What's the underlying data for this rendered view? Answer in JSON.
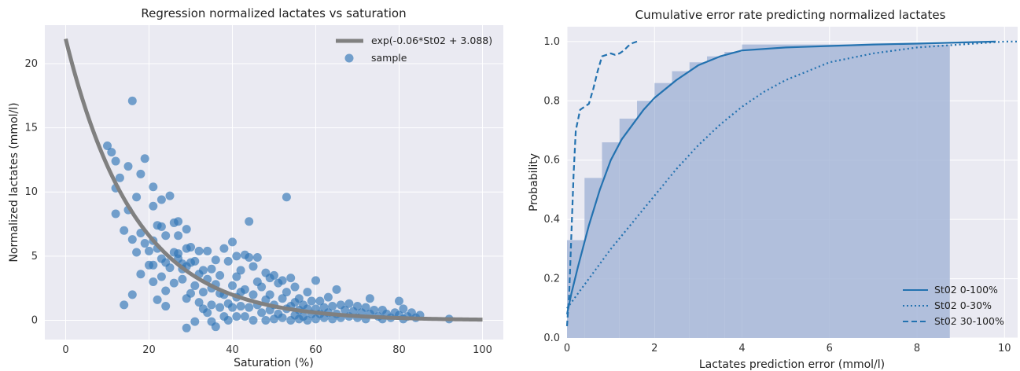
{
  "chart_data": [
    {
      "type": "scatter",
      "title": "Regression normalized lactates vs saturation",
      "xlabel": "Saturation (%)",
      "ylabel": "Normalized lactates (mmol/l)",
      "xlim": [
        -5,
        105
      ],
      "ylim": [
        -1.5,
        23
      ],
      "xticks": [
        0,
        20,
        40,
        60,
        80,
        100
      ],
      "yticks": [
        0,
        5,
        10,
        15,
        20
      ],
      "grid": true,
      "legend_position": "top-right",
      "colors": {
        "fit": "#808080",
        "sample": "#2f75b5",
        "background": "#eaeaf2"
      },
      "series": [
        {
          "name": "exp(-0.06*St02 + 3.088)",
          "kind": "curve",
          "formula": {
            "a": -0.06,
            "b": 3.088,
            "x_range": [
              0,
              100
            ]
          }
        },
        {
          "name": "sample",
          "kind": "points",
          "points": [
            [
              10,
              13.6
            ],
            [
              11,
              13.1
            ],
            [
              12,
              12.4
            ],
            [
              12,
              10.3
            ],
            [
              12,
              8.3
            ],
            [
              13,
              11.1
            ],
            [
              14,
              7.0
            ],
            [
              14,
              1.2
            ],
            [
              15,
              12.0
            ],
            [
              15,
              8.6
            ],
            [
              16,
              17.1
            ],
            [
              16,
              6.3
            ],
            [
              16,
              2.0
            ],
            [
              17,
              9.6
            ],
            [
              17,
              5.3
            ],
            [
              18,
              11.4
            ],
            [
              18,
              6.8
            ],
            [
              18,
              3.6
            ],
            [
              19,
              12.6
            ],
            [
              19,
              6.0
            ],
            [
              20,
              5.4
            ],
            [
              20,
              4.3
            ],
            [
              21,
              10.4
            ],
            [
              21,
              8.9
            ],
            [
              21,
              6.2
            ],
            [
              21,
              4.3
            ],
            [
              21,
              3.0
            ],
            [
              22,
              7.4
            ],
            [
              22,
              5.6
            ],
            [
              22,
              1.6
            ],
            [
              23,
              9.4
            ],
            [
              23,
              7.3
            ],
            [
              23,
              4.8
            ],
            [
              23,
              3.4
            ],
            [
              24,
              6.6
            ],
            [
              24,
              4.5
            ],
            [
              24,
              2.3
            ],
            [
              24,
              1.1
            ],
            [
              25,
              9.7
            ],
            [
              25,
              4.1
            ],
            [
              26,
              7.6
            ],
            [
              26,
              5.3
            ],
            [
              26,
              2.9
            ],
            [
              27,
              7.7
            ],
            [
              27,
              6.6
            ],
            [
              27,
              5.2
            ],
            [
              27,
              4.8
            ],
            [
              28,
              4.4
            ],
            [
              28,
              4.0
            ],
            [
              28,
              3.2
            ],
            [
              29,
              7.1
            ],
            [
              29,
              5.6
            ],
            [
              29,
              4.2
            ],
            [
              29,
              1.7
            ],
            [
              29,
              -0.6
            ],
            [
              30,
              5.7
            ],
            [
              30,
              4.5
            ],
            [
              30,
              2.1
            ],
            [
              31,
              4.6
            ],
            [
              31,
              2.7
            ],
            [
              31,
              -0.1
            ],
            [
              32,
              5.4
            ],
            [
              32,
              3.6
            ],
            [
              32,
              1.4
            ],
            [
              33,
              3.9
            ],
            [
              33,
              2.2
            ],
            [
              33,
              0.9
            ],
            [
              34,
              5.4
            ],
            [
              34,
              3.2
            ],
            [
              34,
              0.6
            ],
            [
              35,
              4.0
            ],
            [
              35,
              2.5
            ],
            [
              35,
              1.2
            ],
            [
              35,
              -0.1
            ],
            [
              36,
              4.7
            ],
            [
              36,
              2.8
            ],
            [
              36,
              -0.5
            ],
            [
              37,
              2.1
            ],
            [
              37,
              1.0
            ],
            [
              37,
              3.5
            ],
            [
              38,
              5.6
            ],
            [
              38,
              0.3
            ],
            [
              38,
              2.0
            ],
            [
              39,
              4.6
            ],
            [
              39,
              1.3
            ],
            [
              39,
              0.0
            ],
            [
              40,
              6.1
            ],
            [
              40,
              2.7
            ],
            [
              40,
              1.0
            ],
            [
              41,
              5.0
            ],
            [
              41,
              3.4
            ],
            [
              41,
              1.8
            ],
            [
              41,
              0.3
            ],
            [
              42,
              2.2
            ],
            [
              42,
              1.1
            ],
            [
              42,
              3.9
            ],
            [
              43,
              5.1
            ],
            [
              43,
              2.4
            ],
            [
              43,
              0.3
            ],
            [
              44,
              4.9
            ],
            [
              44,
              1.0
            ],
            [
              44,
              7.7
            ],
            [
              45,
              4.2
            ],
            [
              45,
              2.0
            ],
            [
              45,
              0.0
            ],
            [
              46,
              4.9
            ],
            [
              46,
              3.0
            ],
            [
              46,
              1.2
            ],
            [
              47,
              2.6
            ],
            [
              47,
              0.6
            ],
            [
              48,
              3.7
            ],
            [
              48,
              1.6
            ],
            [
              48,
              0.0
            ],
            [
              49,
              2.0
            ],
            [
              49,
              3.3
            ],
            [
              49,
              0.8
            ],
            [
              50,
              3.5
            ],
            [
              50,
              1.2
            ],
            [
              50,
              0.1
            ],
            [
              51,
              2.9
            ],
            [
              51,
              0.5
            ],
            [
              52,
              3.1
            ],
            [
              52,
              1.7
            ],
            [
              52,
              0.2
            ],
            [
              53,
              9.6
            ],
            [
              53,
              2.2
            ],
            [
              53,
              0.9
            ],
            [
              54,
              3.3
            ],
            [
              54,
              1.1
            ],
            [
              54,
              0.0
            ],
            [
              55,
              2.6
            ],
            [
              55,
              1.4
            ],
            [
              55,
              0.4
            ],
            [
              56,
              1.7
            ],
            [
              56,
              0.8
            ],
            [
              56,
              0.1
            ],
            [
              57,
              1.2
            ],
            [
              57,
              0.3
            ],
            [
              58,
              2.2
            ],
            [
              58,
              0.9
            ],
            [
              58,
              0.0
            ],
            [
              59,
              1.5
            ],
            [
              59,
              0.5
            ],
            [
              60,
              3.1
            ],
            [
              60,
              0.9
            ],
            [
              60,
              0.1
            ],
            [
              61,
              1.5
            ],
            [
              61,
              0.5
            ],
            [
              62,
              1.0
            ],
            [
              62,
              0.2
            ],
            [
              63,
              1.8
            ],
            [
              63,
              0.6
            ],
            [
              64,
              1.1
            ],
            [
              64,
              0.1
            ],
            [
              65,
              2.4
            ],
            [
              65,
              0.5
            ],
            [
              66,
              1.2
            ],
            [
              66,
              0.2
            ],
            [
              67,
              0.8
            ],
            [
              68,
              1.3
            ],
            [
              68,
              0.3
            ],
            [
              69,
              0.7
            ],
            [
              70,
              1.1
            ],
            [
              70,
              0.2
            ],
            [
              71,
              0.6
            ],
            [
              72,
              1.0
            ],
            [
              72,
              0.1
            ],
            [
              73,
              1.7
            ],
            [
              73,
              0.5
            ],
            [
              74,
              0.8
            ],
            [
              75,
              0.3
            ],
            [
              76,
              0.8
            ],
            [
              76,
              0.1
            ],
            [
              77,
              0.5
            ],
            [
              78,
              0.2
            ],
            [
              79,
              0.6
            ],
            [
              80,
              1.5
            ],
            [
              80,
              0.4
            ],
            [
              81,
              0.9
            ],
            [
              81,
              0.1
            ],
            [
              82,
              0.3
            ],
            [
              83,
              0.6
            ],
            [
              84,
              0.2
            ],
            [
              85,
              0.4
            ],
            [
              92,
              0.1
            ]
          ]
        }
      ]
    },
    {
      "type": "line",
      "title": "Cumulative error rate predicting normalized lactates",
      "xlabel": "Lactates prediction error (mmol/l)",
      "ylabel": "Probability",
      "xlim": [
        0,
        10.3
      ],
      "ylim": [
        0,
        1.05
      ],
      "xticks": [
        0,
        2,
        4,
        6,
        8,
        10
      ],
      "yticks": [
        0.0,
        0.2,
        0.4,
        0.6,
        0.8,
        1.0
      ],
      "grid": true,
      "legend_position": "bottom-right",
      "colors": {
        "line": "#2372b0",
        "hist": "#a7b7d8",
        "background": "#eaeaf2"
      },
      "histogram": {
        "bin_edges": [
          0,
          0.4,
          0.8,
          1.2,
          1.6,
          2.0,
          2.4,
          2.8,
          3.2,
          3.6,
          4.0,
          8.75
        ],
        "values": [
          0.33,
          0.54,
          0.66,
          0.74,
          0.8,
          0.86,
          0.9,
          0.93,
          0.95,
          0.965,
          0.99
        ]
      },
      "series": [
        {
          "name": "St02 0-100%",
          "style": "solid",
          "x": [
            0,
            0.1,
            0.25,
            0.5,
            0.75,
            1.0,
            1.25,
            1.5,
            1.75,
            2.0,
            2.5,
            3.0,
            3.5,
            4.0,
            5.0,
            6.0,
            7.0,
            8.0,
            9.0,
            9.8
          ],
          "y": [
            0.08,
            0.15,
            0.24,
            0.38,
            0.5,
            0.6,
            0.67,
            0.72,
            0.77,
            0.81,
            0.87,
            0.92,
            0.95,
            0.97,
            0.98,
            0.985,
            0.99,
            0.993,
            0.997,
            1.0
          ]
        },
        {
          "name": "St02 0-30%",
          "style": "dotted",
          "x": [
            0,
            0.2,
            0.5,
            1.0,
            1.5,
            2.0,
            2.5,
            3.0,
            3.5,
            4.0,
            4.5,
            5.0,
            6.0,
            7.0,
            8.0,
            9.0,
            10.0,
            10.3
          ],
          "y": [
            0.1,
            0.14,
            0.2,
            0.3,
            0.39,
            0.48,
            0.57,
            0.65,
            0.72,
            0.78,
            0.83,
            0.87,
            0.93,
            0.96,
            0.98,
            0.99,
            1.0,
            1.0
          ]
        },
        {
          "name": "St02 30-100%",
          "style": "dashed",
          "x": [
            0,
            0.05,
            0.1,
            0.15,
            0.2,
            0.3,
            0.4,
            0.5,
            0.6,
            0.7,
            0.8,
            0.9,
            1.0,
            1.1,
            1.2,
            1.3,
            1.4,
            1.5,
            1.6
          ],
          "y": [
            0.04,
            0.15,
            0.35,
            0.55,
            0.7,
            0.77,
            0.78,
            0.79,
            0.84,
            0.9,
            0.95,
            0.955,
            0.96,
            0.955,
            0.96,
            0.97,
            0.985,
            0.995,
            1.0
          ]
        }
      ]
    }
  ]
}
